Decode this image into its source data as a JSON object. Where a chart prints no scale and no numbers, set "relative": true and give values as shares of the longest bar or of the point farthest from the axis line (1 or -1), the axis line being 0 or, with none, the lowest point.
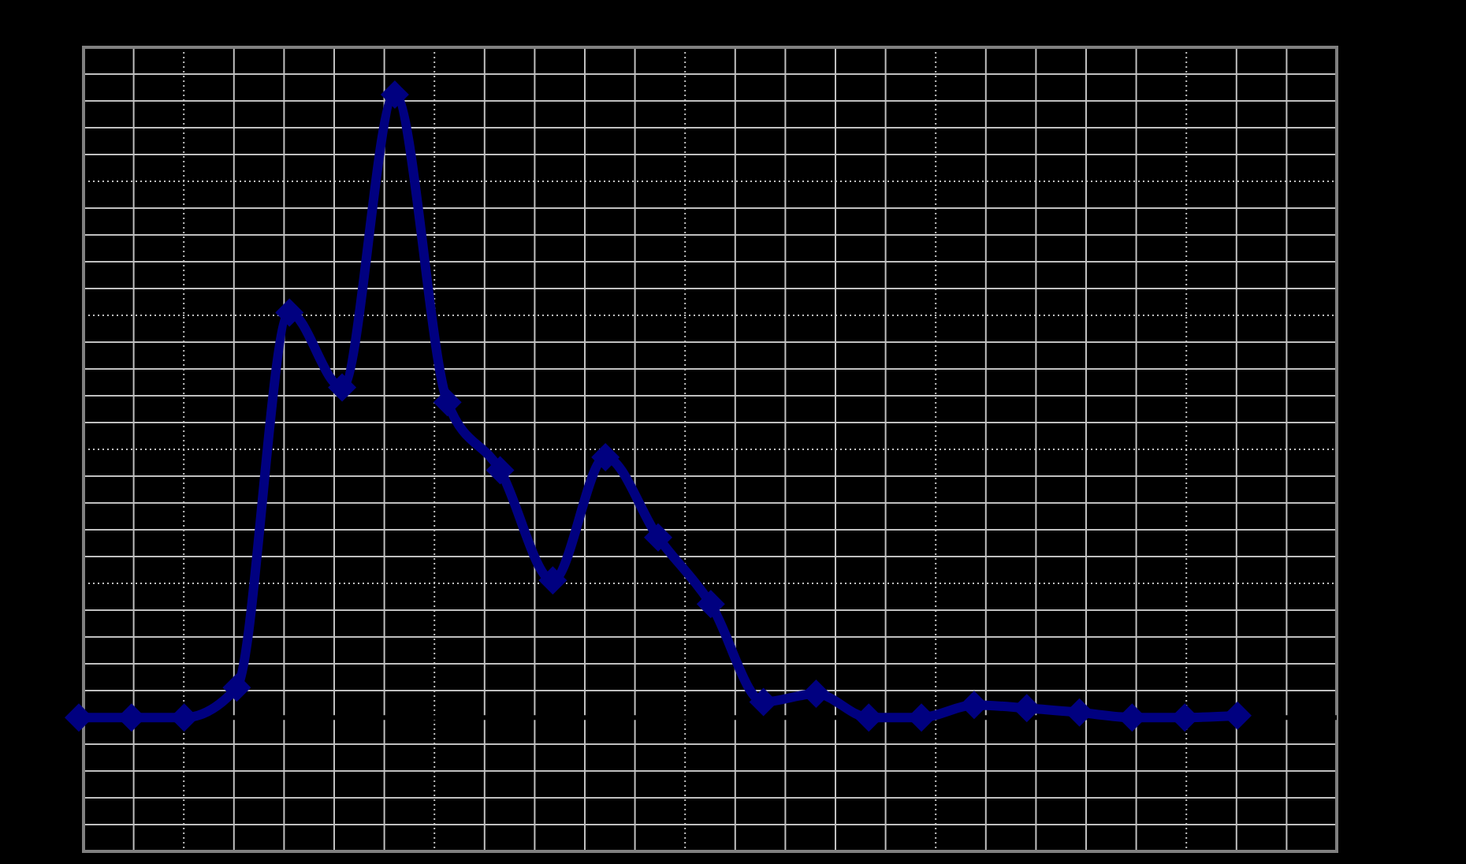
{
  "chart_data": {
    "type": "line",
    "relative": true,
    "grid": true,
    "marker": "diamond",
    "line_style": "solid",
    "categories": [
      null,
      null,
      null,
      null,
      null,
      null,
      null,
      null,
      null,
      null,
      null,
      null,
      null,
      null,
      null,
      null,
      null,
      null,
      null,
      null,
      null,
      null,
      null
    ],
    "series": [
      {
        "color": "#000080",
        "values": [
          0,
          0,
          0,
          0.048,
          0.65,
          0.53,
          1,
          0.506,
          0.397,
          0.22,
          0.418,
          0.289,
          0.182,
          0.025,
          0.038,
          0,
          0,
          0.02,
          0.015,
          0.008,
          0,
          0,
          0.003
        ]
      }
    ]
  }
}
